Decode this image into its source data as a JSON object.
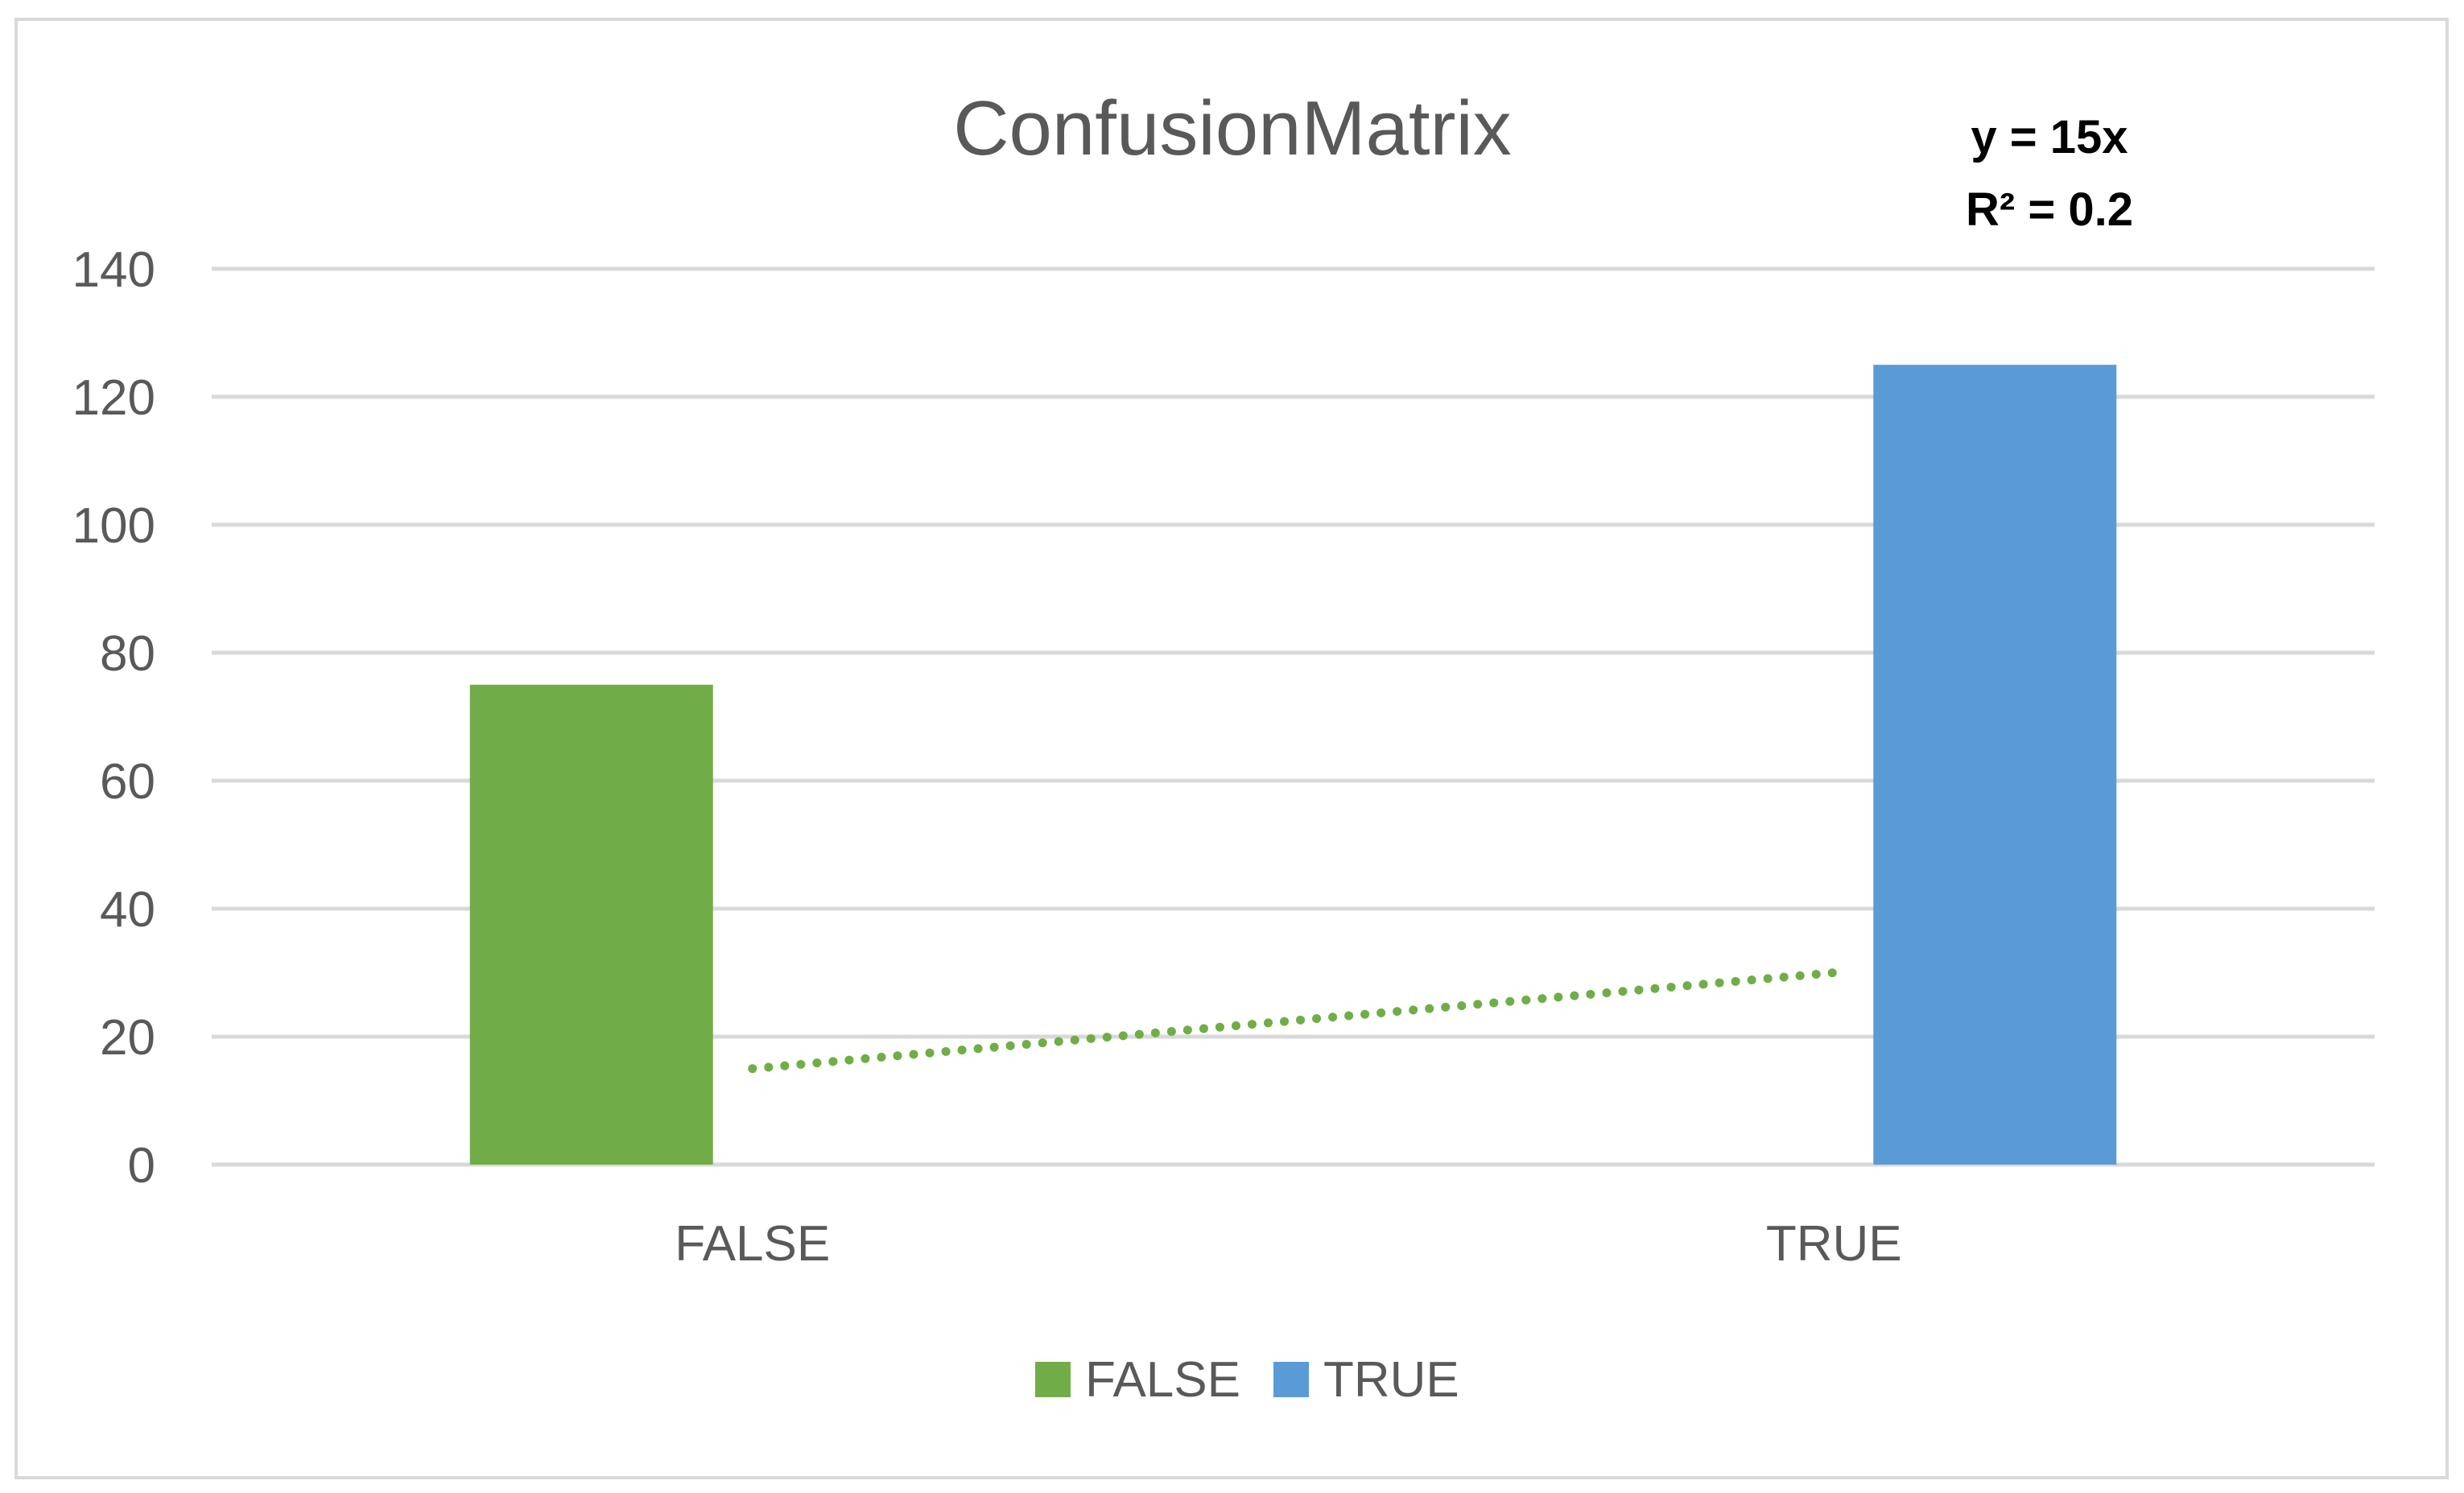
{
  "chart_data": {
    "type": "bar",
    "title": "ConfusionMatrix",
    "categories": [
      "FALSE",
      "TRUE"
    ],
    "series": [
      {
        "name": "FALSE",
        "category": "FALSE",
        "value": 75,
        "color": "#70AD47"
      },
      {
        "name": "TRUE",
        "category": "TRUE",
        "value": 125,
        "color": "#5B9BD5"
      }
    ],
    "ylim": [
      0,
      140
    ],
    "yticks": [
      0,
      20,
      40,
      60,
      80,
      100,
      120,
      140
    ],
    "ytick_labels": [
      "0",
      "20",
      "40",
      "60",
      "80",
      "100",
      "120",
      "140"
    ],
    "grid": true,
    "legend_position": "bottom",
    "trendline": {
      "style": "dotted",
      "color": "#70AD47",
      "points": [
        {
          "x": "FALSE",
          "y": 15
        },
        {
          "x": "TRUE",
          "y": 30
        }
      ],
      "equation": "y = 15x",
      "r_squared": "R² = 0.2"
    }
  }
}
